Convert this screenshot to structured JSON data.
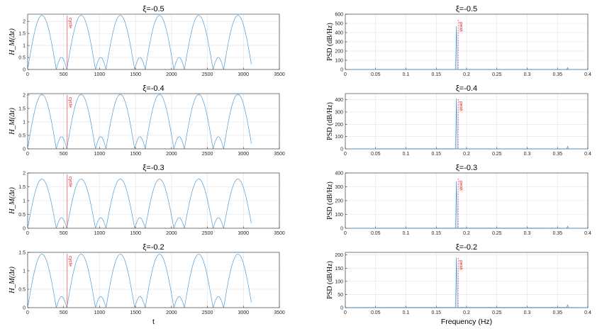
{
  "chart_data": [
    {
      "type": "line",
      "title": "ξ=-0.5",
      "ylabel": "H_M(Δt)",
      "xlabel": "",
      "xlim": [
        0,
        3500
      ],
      "ylim": [
        0,
        2.3
      ],
      "xticks": [
        "0",
        "500",
        "1000",
        "1500",
        "2000",
        "2500",
        "3000",
        "3500"
      ],
      "yticks": [
        "0",
        "0.5",
        "1",
        "1.5",
        "2"
      ],
      "yticks_v": [
        0,
        0.5,
        1,
        1.5,
        2
      ],
      "series": [
        {
          "color": "#4d9bd6",
          "main_peak": 2.25,
          "minor_peak": 0.5,
          "period": 545,
          "end": 3110
        }
      ],
      "annotation": {
        "text": "cycle",
        "x": 550,
        "color": "#e0202a"
      }
    },
    {
      "type": "line",
      "title": "ξ=-0.4",
      "ylabel": "H_M(Δt)",
      "xlabel": "",
      "xlim": [
        0,
        3500
      ],
      "ylim": [
        0,
        2.05
      ],
      "xticks": [
        "0",
        "500",
        "1000",
        "1500",
        "2000",
        "2500",
        "3000",
        "3500"
      ],
      "yticks": [
        "0",
        "0.5",
        "1",
        "1.5",
        "2"
      ],
      "yticks_v": [
        0,
        0.5,
        1,
        1.5,
        2
      ],
      "series": [
        {
          "color": "#4d9bd6",
          "main_peak": 2.02,
          "minor_peak": 0.45,
          "period": 545,
          "end": 3110
        }
      ],
      "annotation": {
        "text": "cycle",
        "x": 550,
        "color": "#e0202a"
      }
    },
    {
      "type": "line",
      "title": "ξ=-0.3",
      "ylabel": "H_M(Δt)",
      "xlabel": "",
      "xlim": [
        0,
        3500
      ],
      "ylim": [
        0,
        2
      ],
      "xticks": [
        "0",
        "500",
        "1000",
        "1500",
        "2000",
        "2500",
        "3000",
        "3500"
      ],
      "yticks": [
        "0",
        "0.5",
        "1",
        "1.5",
        "2"
      ],
      "yticks_v": [
        0,
        0.5,
        1,
        1.5,
        2
      ],
      "series": [
        {
          "color": "#4d9bd6",
          "main_peak": 1.78,
          "minor_peak": 0.38,
          "period": 545,
          "end": 3110
        }
      ],
      "annotation": {
        "text": "cycle",
        "x": 550,
        "color": "#e0202a"
      }
    },
    {
      "type": "line",
      "title": "ξ=-0.2",
      "ylabel": "H_M(Δt)",
      "xlabel": "t",
      "xlim": [
        0,
        3500
      ],
      "ylim": [
        0,
        1.5
      ],
      "xticks": [
        "0",
        "500",
        "1000",
        "1500",
        "2000",
        "2500",
        "3000",
        "3500"
      ],
      "yticks": [
        "0",
        "0.5",
        "1",
        "1.5"
      ],
      "yticks_v": [
        0,
        0.5,
        1,
        1.5
      ],
      "series": [
        {
          "color": "#4d9bd6",
          "main_peak": 1.45,
          "minor_peak": 0.3,
          "period": 545,
          "end": 3110
        }
      ],
      "annotation": {
        "text": "cycle",
        "x": 550,
        "color": "#e0202a"
      }
    },
    {
      "type": "line",
      "title": "ξ=-0.5",
      "ylabel": "PSD (dB/Hz)",
      "xlabel": "",
      "xlim": [
        0,
        0.4
      ],
      "ylim": [
        0,
        600
      ],
      "xticks": [
        "0",
        "0.05",
        "0.1",
        "0.15",
        "0.2",
        "0.25",
        "0.3",
        "0.35",
        "0.4"
      ],
      "yticks": [
        "0",
        "100",
        "200",
        "300",
        "400",
        "500",
        "600"
      ],
      "yticks_v": [
        0,
        100,
        200,
        300,
        400,
        500,
        600
      ],
      "series": [
        {
          "color": "#4d9bd6",
          "peak_x": 0.1833,
          "peak_y": 470,
          "harmonic_x": 0.3667,
          "harmonic_y": 20
        }
      ],
      "annotation": {
        "text": "peak",
        "x": 0.1833,
        "color": "#e0202a"
      }
    },
    {
      "type": "line",
      "title": "ξ=-0.4",
      "ylabel": "PSD (dB/Hz)",
      "xlabel": "",
      "xlim": [
        0,
        0.4
      ],
      "ylim": [
        0,
        450
      ],
      "xticks": [
        "0",
        "0.05",
        "0.1",
        "0.15",
        "0.2",
        "0.25",
        "0.3",
        "0.35",
        "0.4"
      ],
      "yticks": [
        "0",
        "100",
        "200",
        "300",
        "400"
      ],
      "yticks_v": [
        0,
        100,
        200,
        300,
        400
      ],
      "series": [
        {
          "color": "#4d9bd6",
          "peak_x": 0.1833,
          "peak_y": 410,
          "harmonic_x": 0.3667,
          "harmonic_y": 20
        }
      ],
      "annotation": {
        "text": "peak",
        "x": 0.1833,
        "color": "#e0202a"
      }
    },
    {
      "type": "line",
      "title": "ξ=-0.3",
      "ylabel": "PSD (dB/Hz)",
      "xlabel": "",
      "xlim": [
        0,
        0.4
      ],
      "ylim": [
        0,
        400
      ],
      "xticks": [
        "0",
        "0.05",
        "0.1",
        "0.15",
        "0.2",
        "0.25",
        "0.3",
        "0.35",
        "0.4"
      ],
      "yticks": [
        "0",
        "100",
        "200",
        "300",
        "400"
      ],
      "yticks_v": [
        0,
        100,
        200,
        300,
        400
      ],
      "series": [
        {
          "color": "#4d9bd6",
          "peak_x": 0.1833,
          "peak_y": 340,
          "harmonic_x": 0.3667,
          "harmonic_y": 15
        }
      ],
      "annotation": {
        "text": "peak",
        "x": 0.1833,
        "color": "#e0202a"
      }
    },
    {
      "type": "line",
      "title": "ξ=-0.2",
      "ylabel": "PSD (dB/Hz)",
      "xlabel": "Frequency (Hz)",
      "xlim": [
        0,
        0.4
      ],
      "ylim": [
        0,
        210
      ],
      "xticks": [
        "0",
        "0.05",
        "0.1",
        "0.15",
        "0.2",
        "0.25",
        "0.3",
        "0.35",
        "0.4"
      ],
      "yticks": [
        "0",
        "50",
        "100",
        "150",
        "200"
      ],
      "yticks_v": [
        0,
        50,
        100,
        150,
        200
      ],
      "series": [
        {
          "color": "#4d9bd6",
          "peak_x": 0.1833,
          "peak_y": 190,
          "harmonic_x": 0.3667,
          "harmonic_y": 10
        }
      ],
      "annotation": {
        "text": "peak",
        "x": 0.1833,
        "color": "#e0202a"
      }
    }
  ]
}
